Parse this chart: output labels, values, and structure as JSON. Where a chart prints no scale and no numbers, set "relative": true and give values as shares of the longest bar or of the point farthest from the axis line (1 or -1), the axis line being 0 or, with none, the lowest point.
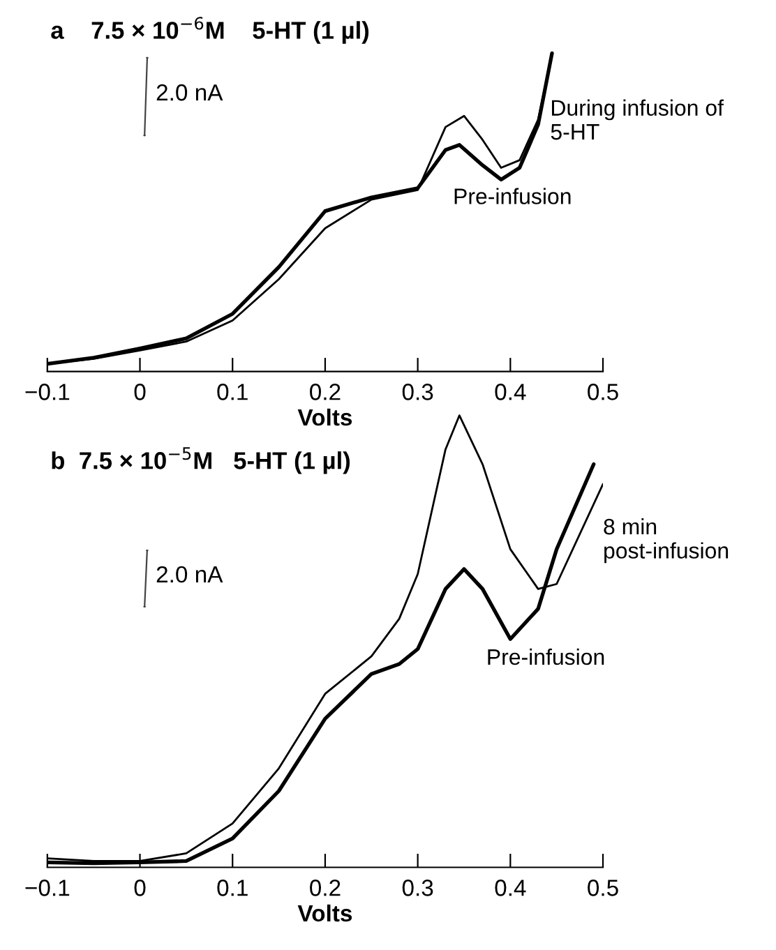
{
  "chart_data": [
    {
      "type": "line",
      "title": "a    7.5 × 10$^{−6}$M    5-HT (1 µl)",
      "xlabel": "Volts",
      "relative": true,
      "xlim": [
        -0.1,
        0.5
      ],
      "xticks": [
        {
          "value": -0.1,
          "label": "−0.1"
        },
        0,
        0.1,
        0.2,
        0.3,
        0.4,
        0.5
      ],
      "annotations": [
        "2.0 nA"
      ],
      "tick_labels": "x",
      "series": [
        {
          "name": "During infusion of 5-HT",
          "color": "#000000",
          "x": [
            -0.1,
            -0.05,
            0,
            0.05,
            0.1,
            0.15,
            0.2,
            0.25,
            0.3,
            0.33,
            0.35,
            0.37,
            0.39,
            0.41,
            0.43,
            0.445
          ],
          "values": [
            0.024,
            0.04,
            0.066,
            0.094,
            0.16,
            0.29,
            0.45,
            0.54,
            0.57,
            0.768,
            0.803,
            0.728,
            0.64,
            0.664,
            0.792,
            1.0
          ]
        },
        {
          "name": "Pre-infusion",
          "color": "#000000",
          "x": [
            -0.1,
            -0.05,
            0,
            0.05,
            0.1,
            0.15,
            0.2,
            0.25,
            0.3,
            0.33,
            0.345,
            0.37,
            0.39,
            0.41,
            0.43,
            0.445
          ],
          "values": [
            0.024,
            0.043,
            0.072,
            0.104,
            0.181,
            0.328,
            0.504,
            0.547,
            0.576,
            0.696,
            0.712,
            0.648,
            0.603,
            0.64,
            0.776,
            1.0
          ]
        }
      ]
    },
    {
      "type": "line",
      "title": "b  7.5 × 10$^{−5}$M   5-HT (1 µl)",
      "xlabel": "Volts",
      "relative": true,
      "xlim": [
        -0.1,
        0.5
      ],
      "xticks": [
        {
          "value": -0.1,
          "label": "−0.1"
        },
        0,
        0.1,
        0.2,
        0.3,
        0.4,
        0.5
      ],
      "annotations": [
        "2.0 nA"
      ],
      "tick_labels": "x",
      "series": [
        {
          "name": "8 min post-infusion",
          "color": "#000000",
          "x": [
            -0.1,
            -0.05,
            0,
            0.05,
            0.1,
            0.15,
            0.2,
            0.25,
            0.28,
            0.3,
            0.33,
            0.345,
            0.37,
            0.4,
            0.43,
            0.45,
            0.5
          ],
          "values": [
            0.02,
            0.014,
            0.014,
            0.031,
            0.097,
            0.219,
            0.384,
            0.467,
            0.55,
            0.649,
            0.925,
            1.0,
            0.892,
            0.704,
            0.616,
            0.627,
            0.848
          ]
        },
        {
          "name": "Pre-infusion",
          "color": "#000000",
          "x": [
            -0.1,
            -0.05,
            0,
            0.05,
            0.1,
            0.15,
            0.2,
            0.25,
            0.28,
            0.3,
            0.33,
            0.35,
            0.37,
            0.4,
            0.43,
            0.45,
            0.49
          ],
          "values": [
            0.011,
            0.009,
            0.011,
            0.014,
            0.064,
            0.169,
            0.329,
            0.428,
            0.45,
            0.483,
            0.616,
            0.66,
            0.616,
            0.505,
            0.572,
            0.704,
            0.892
          ]
        }
      ]
    }
  ]
}
